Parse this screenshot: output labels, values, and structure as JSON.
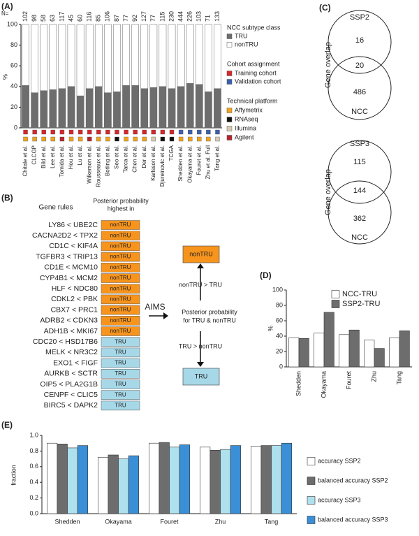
{
  "panel_labels": [
    "(A)",
    "(B)",
    "(C)",
    "(D)",
    "(E)"
  ],
  "chart_data": [
    {
      "type": "bar",
      "stacked": true,
      "y_label": "%",
      "n_label": "N=",
      "n_values": [
        102,
        98,
        58,
        63,
        117,
        45,
        60,
        116,
        85,
        106,
        87,
        77,
        92,
        127,
        77,
        115,
        230,
        444,
        226,
        103,
        71,
        133
      ],
      "categories": [
        "Chitale et al.",
        "CLCGP",
        "Bild et al.",
        "Lee et al.",
        "Tomida et al.",
        "Hou et al.",
        "Lu et al.",
        "Wilkerson et al.",
        "Rousseaux et al.",
        "Botling et al.",
        "Seo et al.",
        "Tarca et al.",
        "Chen et al.",
        "Der et al.",
        "Karlsson et al.",
        "Djureinovic et al.",
        "TCGA",
        "Shedden et al.",
        "Okayama et al.",
        "Fouret et al.",
        "Zhu et al. Full",
        "Tang et al."
      ],
      "series": [
        {
          "name": "TRU",
          "color": "#6d6d6d",
          "values": [
            41,
            34,
            36,
            37,
            38,
            40,
            31,
            38,
            40,
            34,
            35,
            41,
            41,
            38,
            39,
            40,
            38,
            40,
            43,
            42,
            35,
            38
          ]
        },
        {
          "name": "nonTRU",
          "color": "#ffffff",
          "values": [
            59,
            66,
            64,
            63,
            62,
            60,
            69,
            62,
            60,
            66,
            65,
            59,
            59,
            62,
            61,
            60,
            62,
            60,
            57,
            58,
            65,
            62
          ]
        }
      ],
      "ylim": [
        0,
        100
      ],
      "yticks": [
        0,
        20,
        40,
        60,
        80,
        100
      ],
      "legend_title": "NCC subtype class",
      "cohort_title": "Cohort assignment",
      "cohorts": [
        {
          "name": "Training cohort",
          "color": "#d7262b"
        },
        {
          "name": "Validation cohort",
          "color": "#3a5fb0"
        }
      ],
      "cohort_colors": [
        "#d7262b",
        "#d7262b",
        "#d7262b",
        "#d7262b",
        "#d7262b",
        "#d7262b",
        "#d7262b",
        "#d7262b",
        "#d7262b",
        "#d7262b",
        "#d7262b",
        "#d7262b",
        "#d7262b",
        "#d7262b",
        "#d7262b",
        "#d7262b",
        "#d7262b",
        "#3a5fb0",
        "#3a5fb0",
        "#3a5fb0",
        "#3a5fb0",
        "#3a5fb0"
      ],
      "platform_title": "Technical platform",
      "platforms": [
        {
          "name": "Affymetrix",
          "color": "#f2a31b"
        },
        {
          "name": "RNAseq",
          "color": "#111111"
        },
        {
          "name": "Illumina",
          "color": "#d8ccb0"
        },
        {
          "name": "Agilent",
          "color": "#b5252b"
        }
      ],
      "platform_colors": [
        "#f2a31b",
        "#f2a31b",
        "#f2a31b",
        "#f2a31b",
        "#b5252b",
        "#f2a31b",
        "#f2a31b",
        "#b5252b",
        "#f2a31b",
        "#f2a31b",
        "#111111",
        "#f2a31b",
        "#f2a31b",
        "#f2a31b",
        "#d8ccb0",
        "#111111",
        "#111111",
        "#f2a31b",
        "#f2a31b",
        "#f2a31b",
        "#f2a31b",
        "#d8ccb0"
      ]
    },
    {
      "type": "bar",
      "stacked": false,
      "y_label": "%",
      "categories": [
        "Shedden",
        "Okayama",
        "Fouret",
        "Zhu",
        "Tang"
      ],
      "series": [
        {
          "name": "NCC-TRU",
          "color": "#ffffff",
          "values": [
            38,
            44,
            42,
            35,
            38
          ]
        },
        {
          "name": "SSP2-TRU",
          "color": "#6d6d6d",
          "values": [
            37,
            71,
            48,
            24,
            47
          ]
        }
      ],
      "ylim": [
        0,
        100
      ],
      "yticks": [
        0,
        20,
        40,
        60,
        80,
        100
      ]
    },
    {
      "type": "bar",
      "stacked": false,
      "y_label": "fraction",
      "categories": [
        "Shedden",
        "Okayama",
        "Fouret",
        "Zhu",
        "Tang"
      ],
      "series": [
        {
          "name": "accuracy SSP2",
          "color": "#ffffff",
          "values": [
            0.9,
            0.72,
            0.9,
            0.85,
            0.86
          ]
        },
        {
          "name": "balanced accuracy SSP2",
          "color": "#6d6d6d",
          "values": [
            0.89,
            0.75,
            0.91,
            0.81,
            0.87
          ]
        },
        {
          "name": "accuracy SSP3",
          "color": "#aee0ee",
          "values": [
            0.84,
            0.7,
            0.85,
            0.82,
            0.87
          ]
        },
        {
          "name": "balanced accuracy SSP3",
          "color": "#3a8fd6",
          "values": [
            0.87,
            0.74,
            0.88,
            0.87,
            0.9
          ]
        }
      ],
      "ylim": [
        0,
        1.0
      ],
      "yticks": [
        {
          "value": 0,
          "label": "0.0"
        },
        0.2,
        0.4,
        0.6,
        0.8,
        {
          "value": 1,
          "label": "1.0"
        }
      ]
    }
  ],
  "gene_rules": {
    "title": "Gene rules",
    "header": [
      "Posterior probability",
      "highest in"
    ],
    "rules": [
      {
        "rule": "LY86 < UBE2C",
        "class": "nonTRU",
        "color": "#f7941d"
      },
      {
        "rule": "CACNA2D2 < TPX2",
        "class": "nonTRU",
        "color": "#f7941d"
      },
      {
        "rule": "CD1C < KIF4A",
        "class": "nonTRU",
        "color": "#f7941d"
      },
      {
        "rule": "TGFBR3 < TRIP13",
        "class": "nonTRU",
        "color": "#f7941d"
      },
      {
        "rule": "CD1E < MCM10",
        "class": "nonTRU",
        "color": "#f7941d"
      },
      {
        "rule": "CYP4B1 < MCM2",
        "class": "nonTRU",
        "color": "#f7941d"
      },
      {
        "rule": "HLF < NDC80",
        "class": "nonTRU",
        "color": "#f7941d"
      },
      {
        "rule": "CDKL2 < PBK",
        "class": "nonTRU",
        "color": "#f7941d"
      },
      {
        "rule": "CBX7 < PRC1",
        "class": "nonTRU",
        "color": "#f7941d"
      },
      {
        "rule": "ADRB2 < CDKN3",
        "class": "nonTRU",
        "color": "#f7941d"
      },
      {
        "rule": "ADH1B < MKI67",
        "class": "nonTRU",
        "color": "#f7941d"
      },
      {
        "rule": "CDC20 < HSD17B6",
        "class": "TRU",
        "color": "#a6d8e8"
      },
      {
        "rule": "MELK < NR3C2",
        "class": "TRU",
        "color": "#a6d8e8"
      },
      {
        "rule": "EXO1 < FIGF",
        "class": "TRU",
        "color": "#a6d8e8"
      },
      {
        "rule": "AURKB < SCTR",
        "class": "TRU",
        "color": "#a6d8e8"
      },
      {
        "rule": "OIP5 < PLA2G1B",
        "class": "TRU",
        "color": "#a6d8e8"
      },
      {
        "rule": "CENPF < CLIC5",
        "class": "TRU",
        "color": "#a6d8e8"
      },
      {
        "rule": "BIRC5 < DAPK2",
        "class": "TRU",
        "color": "#a6d8e8"
      }
    ]
  },
  "flow": {
    "top_box": "nonTRU",
    "top_edge": "nonTRU > TRU",
    "method": "AIMS",
    "center": [
      "Posterior probability",
      "for TRU & nonTRU"
    ],
    "bottom_edge": "TRU > nonTRU",
    "bottom_box": "TRU"
  },
  "venns": [
    {
      "axis_label": "Gene overlap",
      "top": "SSP2",
      "top_only": "16",
      "both": "20",
      "bottom_only": "486",
      "bottom": "NCC"
    },
    {
      "axis_label": "Gene overlap",
      "top": "SSP3",
      "top_only": "115",
      "both": "144",
      "bottom_only": "362",
      "bottom": "NCC"
    }
  ]
}
